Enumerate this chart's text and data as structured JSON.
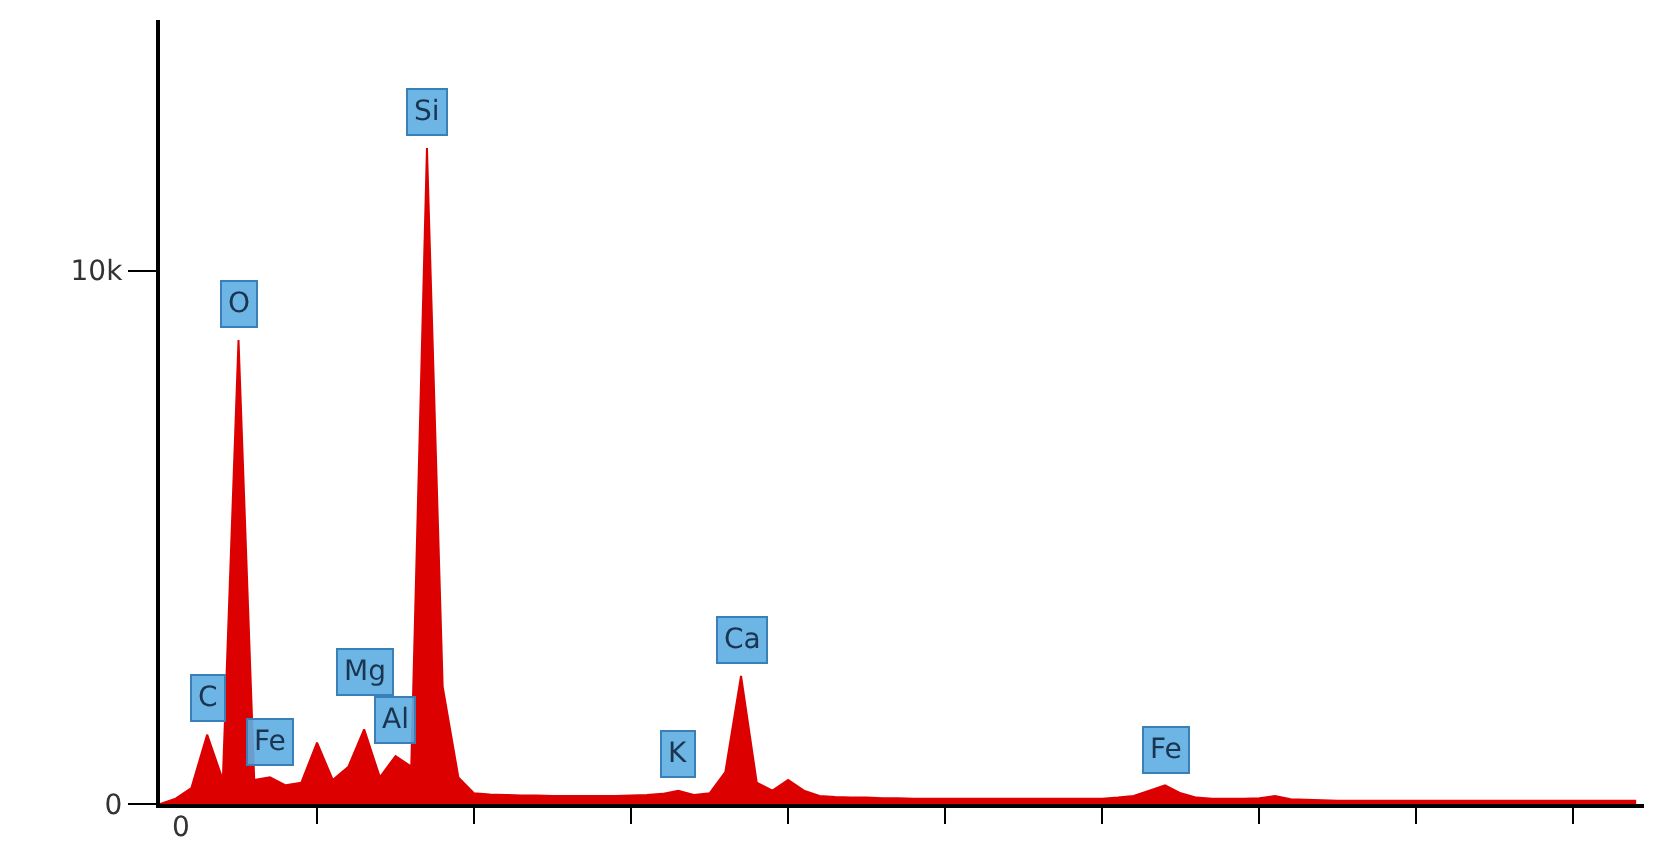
{
  "chart_data": {
    "type": "area",
    "categories": [
      null,
      null,
      null,
      null,
      null,
      null,
      null,
      null,
      null,
      null,
      null,
      null,
      null,
      null,
      null,
      null,
      null,
      null,
      null,
      null,
      null,
      null,
      null,
      null,
      null,
      null,
      null,
      null,
      null,
      null,
      null,
      null,
      null,
      null,
      null,
      null,
      null,
      null,
      null,
      null,
      null,
      null,
      null,
      null,
      null,
      null,
      null,
      null,
      null,
      null,
      null,
      null,
      null,
      null,
      null,
      null,
      null,
      null,
      null,
      null,
      null,
      null,
      null,
      null,
      null,
      null,
      null,
      null,
      null,
      null,
      null,
      null,
      null,
      null,
      null,
      null,
      null,
      null,
      null,
      null,
      null,
      null,
      null,
      null,
      null,
      null,
      null,
      null,
      null,
      null,
      null,
      null,
      null,
      null,
      null
    ],
    "series": [
      {
        "color": "#dd0000",
        "values": [
          0,
          100,
          300,
          1300,
          450,
          8700,
          450,
          500,
          350,
          400,
          1150,
          450,
          700,
          1400,
          500,
          900,
          700,
          12300,
          2200,
          500,
          200,
          180,
          170,
          160,
          160,
          150,
          150,
          150,
          150,
          150,
          160,
          170,
          190,
          250,
          170,
          200,
          600,
          2400,
          400,
          250,
          450,
          250,
          150,
          130,
          120,
          120,
          110,
          110,
          100,
          100,
          100,
          100,
          100,
          100,
          100,
          100,
          100,
          100,
          100,
          100,
          100,
          120,
          150,
          250,
          350,
          200,
          120,
          100,
          100,
          100,
          110,
          150,
          90,
          80,
          70,
          60,
          60,
          60,
          60,
          60,
          60,
          60,
          60,
          60,
          60,
          60,
          60,
          60,
          60,
          60,
          60,
          60,
          60,
          60,
          60
        ],
        "value_labels": [
          null,
          null,
          null,
          "C",
          null,
          "O",
          null,
          "Fe",
          null,
          null,
          null,
          null,
          null,
          "Mg",
          null,
          "Al",
          null,
          "Si",
          null,
          null,
          null,
          null,
          null,
          null,
          null,
          null,
          null,
          null,
          null,
          null,
          null,
          null,
          null,
          "K",
          null,
          null,
          null,
          "Ca",
          null,
          null,
          null,
          null,
          null,
          null,
          null,
          null,
          null,
          null,
          null,
          null,
          null,
          null,
          null,
          null,
          null,
          null,
          null,
          null,
          null,
          null,
          null,
          null,
          null,
          null,
          "Fe",
          null,
          null,
          null,
          null,
          null,
          null,
          null,
          null,
          null,
          null,
          null,
          null,
          null,
          null,
          null,
          null,
          null,
          null,
          null,
          null,
          null,
          null,
          null,
          null,
          null,
          null,
          null,
          null,
          null,
          null
        ]
      }
    ],
    "ylim": [
      0,
      14700
    ],
    "yticks": [
      0,
      {
        "value": 10000,
        "label": "10k"
      }
    ],
    "annotations": [
      "0"
    ]
  }
}
